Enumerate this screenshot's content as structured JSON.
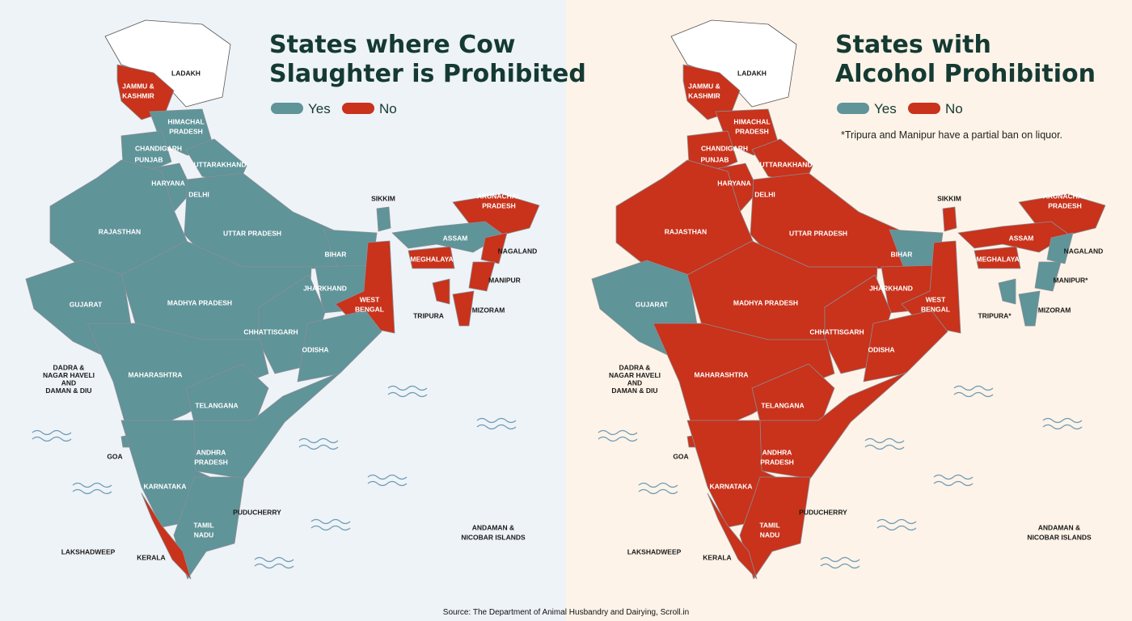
{
  "colors": {
    "yes": "#5f9499",
    "no": "#c9321b",
    "none": "#ffffff"
  },
  "panels": [
    {
      "title": [
        "States where Cow",
        "Slaughter is Prohibited"
      ],
      "legend": [
        "Yes",
        "No"
      ],
      "regions": [
        {
          "label": [
            "LADAKH"
          ],
          "status": null
        },
        {
          "label": [
            "JAMMU &",
            "KASHMIR"
          ],
          "status": "no"
        },
        {
          "label": [
            "HIMACHAL",
            "PRADESH"
          ],
          "status": "yes"
        },
        {
          "label": [
            "CHANDIGARH"
          ],
          "status": null
        },
        {
          "label": [
            "PUNJAB"
          ],
          "status": "yes"
        },
        {
          "label": [
            "UTTARAKHAND"
          ],
          "status": "yes"
        },
        {
          "label": [
            "HARYANA"
          ],
          "status": "yes"
        },
        {
          "label": [
            "DELHI"
          ],
          "status": null
        },
        {
          "label": [
            "RAJASTHAN"
          ],
          "status": "yes"
        },
        {
          "label": [
            "UTTAR PRADESH"
          ],
          "status": "yes"
        },
        {
          "label": [
            "SIKKIM"
          ],
          "status": "yes"
        },
        {
          "label": [
            "ARUNACHAL",
            "PRADESH"
          ],
          "status": "no"
        },
        {
          "label": [
            "ASSAM"
          ],
          "status": "yes"
        },
        {
          "label": [
            "BIHAR"
          ],
          "status": "yes"
        },
        {
          "label": [
            "MEGHALAYA"
          ],
          "status": "no"
        },
        {
          "label": [
            "NAGALAND"
          ],
          "status": "no"
        },
        {
          "label": [
            "JHARKHAND"
          ],
          "status": "yes"
        },
        {
          "label": [
            "MANIPUR"
          ],
          "status": "no"
        },
        {
          "label": [
            "GUJARAT"
          ],
          "status": "yes"
        },
        {
          "label": [
            "MADHYA PRADESH"
          ],
          "status": "yes"
        },
        {
          "label": [
            "WEST",
            "BENGAL"
          ],
          "status": "no"
        },
        {
          "label": [
            "TRIPURA"
          ],
          "status": "no"
        },
        {
          "label": [
            "MIZORAM"
          ],
          "status": "no"
        },
        {
          "label": [
            "CHHATTISGARH"
          ],
          "status": "yes"
        },
        {
          "label": [
            "ODISHA"
          ],
          "status": "yes"
        },
        {
          "label": [
            "DADRA &",
            "NAGAR HAVELI",
            "AND",
            "DAMAN & DIU"
          ],
          "status": null
        },
        {
          "label": [
            "MAHARASHTRA"
          ],
          "status": "yes"
        },
        {
          "label": [
            "TELANGANA"
          ],
          "status": "yes"
        },
        {
          "label": [
            "GOA"
          ],
          "status": "yes"
        },
        {
          "label": [
            "ANDHRA",
            "PRADESH"
          ],
          "status": "yes"
        },
        {
          "label": [
            "KARNATAKA"
          ],
          "status": "yes"
        },
        {
          "label": [
            "PUDUCHERRY"
          ],
          "status": null
        },
        {
          "label": [
            "TAMIL",
            "NADU"
          ],
          "status": "yes"
        },
        {
          "label": [
            "ANDAMAN &",
            "NICOBAR ISLANDS"
          ],
          "status": null
        },
        {
          "label": [
            "LAKSHADWEEP"
          ],
          "status": null
        },
        {
          "label": [
            "KERALA"
          ],
          "status": "no"
        }
      ]
    },
    {
      "title": [
        "States with",
        "Alcohol Prohibition"
      ],
      "legend": [
        "Yes",
        "No"
      ],
      "note": "*Tripura and Manipur have a partial ban on liquor.",
      "regions": [
        {
          "label": [
            "LADAKH"
          ],
          "status": null
        },
        {
          "label": [
            "JAMMU &",
            "KASHMIR"
          ],
          "status": "no"
        },
        {
          "label": [
            "HIMACHAL",
            "PRADESH"
          ],
          "status": "no"
        },
        {
          "label": [
            "CHANDIGARH"
          ],
          "status": null
        },
        {
          "label": [
            "PUNJAB"
          ],
          "status": "no"
        },
        {
          "label": [
            "UTTARAKHAND"
          ],
          "status": "no"
        },
        {
          "label": [
            "HARYANA"
          ],
          "status": "no"
        },
        {
          "label": [
            "DELHI"
          ],
          "status": null
        },
        {
          "label": [
            "RAJASTHAN"
          ],
          "status": "no"
        },
        {
          "label": [
            "UTTAR PRADESH"
          ],
          "status": "no"
        },
        {
          "label": [
            "SIKKIM"
          ],
          "status": "no"
        },
        {
          "label": [
            "ARUNACHAL",
            "PRADESH"
          ],
          "status": "no"
        },
        {
          "label": [
            "ASSAM"
          ],
          "status": "no"
        },
        {
          "label": [
            "BIHAR"
          ],
          "status": "yes"
        },
        {
          "label": [
            "MEGHALAYA"
          ],
          "status": "no"
        },
        {
          "label": [
            "NAGALAND"
          ],
          "status": "yes"
        },
        {
          "label": [
            "JHARKHAND"
          ],
          "status": "no"
        },
        {
          "label": [
            "MANIPUR*"
          ],
          "status": "yes"
        },
        {
          "label": [
            "GUJARAT"
          ],
          "status": "yes"
        },
        {
          "label": [
            "MADHYA PRADESH"
          ],
          "status": "no"
        },
        {
          "label": [
            "WEST",
            "BENGAL"
          ],
          "status": "no"
        },
        {
          "label": [
            "TRIPURA*"
          ],
          "status": "yes"
        },
        {
          "label": [
            "MIZORAM"
          ],
          "status": "yes"
        },
        {
          "label": [
            "CHHATTISGARH"
          ],
          "status": "no"
        },
        {
          "label": [
            "ODISHA"
          ],
          "status": "no"
        },
        {
          "label": [
            "DADRA &",
            "NAGAR HAVELI",
            "AND",
            "DAMAN & DIU"
          ],
          "status": null
        },
        {
          "label": [
            "MAHARASHTRA"
          ],
          "status": "no"
        },
        {
          "label": [
            "TELANGANA"
          ],
          "status": "no"
        },
        {
          "label": [
            "GOA"
          ],
          "status": "no"
        },
        {
          "label": [
            "ANDHRA",
            "PRADESH"
          ],
          "status": "no"
        },
        {
          "label": [
            "KARNATAKA"
          ],
          "status": "no"
        },
        {
          "label": [
            "PUDUCHERRY"
          ],
          "status": null
        },
        {
          "label": [
            "TAMIL",
            "NADU"
          ],
          "status": "no"
        },
        {
          "label": [
            "ANDAMAN &",
            "NICOBAR ISLANDS"
          ],
          "status": null
        },
        {
          "label": [
            "LAKSHADWEEP"
          ],
          "status": null
        },
        {
          "label": [
            "KERALA"
          ],
          "status": "no"
        }
      ]
    }
  ],
  "source": "Source: The Department of Animal Husbandry and Dairying, Scroll.in"
}
